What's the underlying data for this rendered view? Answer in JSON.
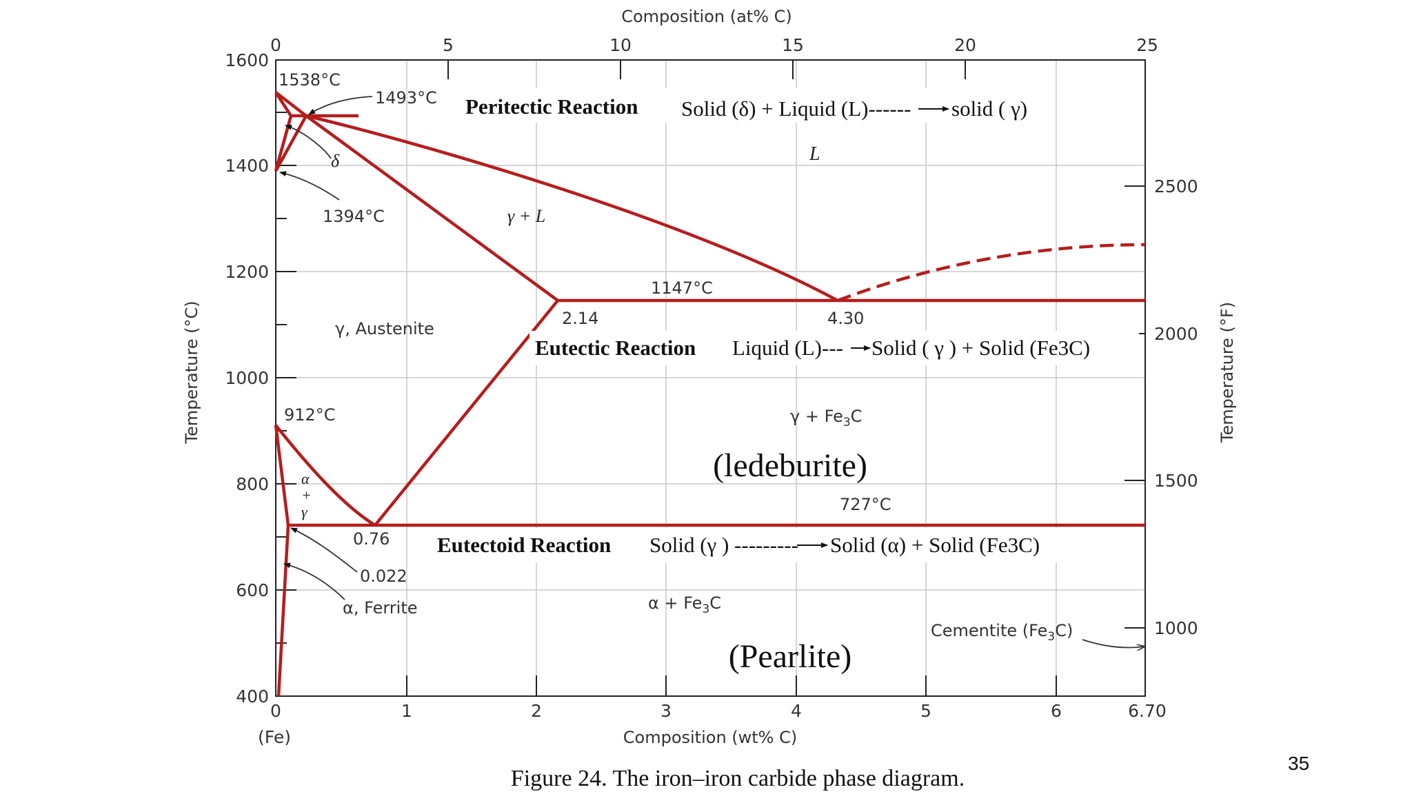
{
  "axes": {
    "top_title": "Composition (at% C)",
    "bottom_title": "Composition (wt% C)",
    "left_title": "Temperature (°C)",
    "right_title": "Temperature (°F)",
    "fe_label": "(Fe)",
    "top_ticks": [
      "0",
      "5",
      "10",
      "15",
      "20",
      "25"
    ],
    "bottom_ticks": [
      "0",
      "1",
      "2",
      "3",
      "4",
      "5",
      "6",
      "6.70"
    ],
    "left_ticks": [
      "400",
      "600",
      "800",
      "1000",
      "1200",
      "1400",
      "1600"
    ],
    "right_ticks": [
      "1000",
      "1500",
      "2000",
      "2500"
    ]
  },
  "labels": {
    "t1538": "1538°C",
    "t1493": "1493°C",
    "t1394": "1394°C",
    "t1147": "1147°C",
    "t912": "912°C",
    "t727": "727°C",
    "c214": "2.14",
    "c430": "4.30",
    "c076": "0.76",
    "c0022": "0.022",
    "delta": "δ",
    "liquid": "L",
    "gamma_l": "γ + L",
    "austenite": "γ, Austenite",
    "gamma_fe3c": "γ + Fe",
    "alpha_fe3c": "α + Fe",
    "sub3": "3",
    "c_letter": "C",
    "ferrite": "α, Ferrite",
    "alpha_gamma_a": "α",
    "alpha_gamma_plus": "+",
    "alpha_gamma_g": "γ",
    "cementite": "Cementite (Fe",
    "cementite_end": "C)"
  },
  "reactions": {
    "peritectic_name": "Peritectic Reaction",
    "peritectic_eq_left": "Solid (δ) + Liquid (L)------",
    "peritectic_eq_right": "solid ( γ)",
    "eutectic_name": "Eutectic Reaction",
    "eutectic_eq_left": "Liquid (L)---",
    "eutectic_eq_right": "Solid (  γ   ) + Solid (Fe3C)",
    "eutectoid_name": "Eutectoid Reaction",
    "eutectoid_eq_left": "Solid (γ ) ---------",
    "eutectoid_eq_right": "Solid (α) + Solid (Fe3C)",
    "ledeburite": "(ledeburite)",
    "pearlite": "(Pearlite)"
  },
  "caption": "Figure 24. The iron–iron carbide phase diagram.",
  "slide_number": "35",
  "colors": {
    "phase_line": "#b71c1c"
  }
}
